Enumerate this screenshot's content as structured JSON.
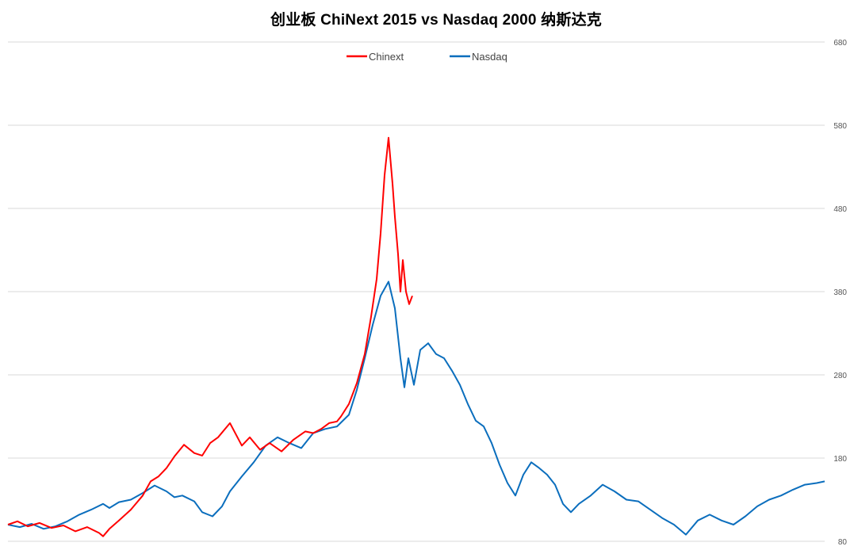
{
  "chart_data": {
    "type": "line",
    "title": "创业板 ChiNext 2015 vs Nasdaq 2000 纳斯达克",
    "xlabel": "",
    "ylabel": "",
    "ylim": [
      80,
      680
    ],
    "yticks": [
      80,
      180,
      280,
      380,
      480,
      580,
      680
    ],
    "grid": true,
    "legend_position": "top-center",
    "series": [
      {
        "name": "Chinext",
        "color": "#ff0000",
        "x": [
          0,
          12,
          25,
          40,
          55,
          70,
          85,
          100,
          115,
          120,
          128,
          140,
          155,
          170,
          180,
          190,
          200,
          210,
          222,
          235,
          245,
          255,
          265,
          280,
          295,
          305,
          318,
          330,
          345,
          360,
          375,
          385,
          395,
          405,
          415,
          420,
          430,
          440,
          450,
          458,
          465,
          470,
          475,
          480,
          485,
          488,
          492,
          495,
          498,
          502,
          506,
          510
        ],
        "y": [
          100,
          104,
          98,
          102,
          96,
          99,
          92,
          97,
          90,
          86,
          95,
          105,
          118,
          135,
          152,
          158,
          168,
          182,
          196,
          186,
          183,
          198,
          205,
          222,
          195,
          205,
          190,
          198,
          188,
          202,
          212,
          210,
          215,
          222,
          224,
          230,
          245,
          270,
          305,
          350,
          395,
          450,
          520,
          565,
          510,
          470,
          425,
          380,
          418,
          380,
          365,
          375
        ]
      },
      {
        "name": "Nasdaq",
        "color": "#0b6ebd",
        "x": [
          0,
          15,
          30,
          45,
          60,
          75,
          90,
          105,
          120,
          128,
          140,
          155,
          170,
          185,
          200,
          210,
          220,
          235,
          245,
          258,
          270,
          280,
          295,
          310,
          325,
          340,
          355,
          370,
          385,
          400,
          415,
          430,
          440,
          450,
          460,
          470,
          480,
          488,
          495,
          500,
          505,
          512,
          520,
          530,
          540,
          550,
          560,
          570,
          580,
          590,
          600,
          610,
          620,
          630,
          640,
          650,
          660,
          670,
          680,
          690,
          700,
          710,
          720,
          735,
          750,
          765,
          780,
          795,
          810,
          825,
          840,
          855,
          870,
          885,
          900,
          915,
          930,
          945,
          960,
          975,
          990,
          1005,
          1020,
          1030
        ],
        "y": [
          100,
          97,
          101,
          95,
          98,
          104,
          112,
          118,
          125,
          120,
          127,
          130,
          138,
          147,
          140,
          133,
          135,
          128,
          115,
          110,
          122,
          140,
          158,
          175,
          195,
          205,
          198,
          192,
          210,
          215,
          218,
          232,
          262,
          300,
          340,
          375,
          392,
          360,
          300,
          265,
          300,
          268,
          310,
          318,
          305,
          300,
          285,
          268,
          245,
          225,
          218,
          198,
          172,
          150,
          135,
          160,
          175,
          168,
          160,
          148,
          125,
          115,
          125,
          135,
          148,
          140,
          130,
          128,
          118,
          108,
          100,
          88,
          105,
          112,
          105,
          100,
          110,
          122,
          130,
          135,
          142,
          148,
          150,
          152
        ]
      }
    ]
  }
}
